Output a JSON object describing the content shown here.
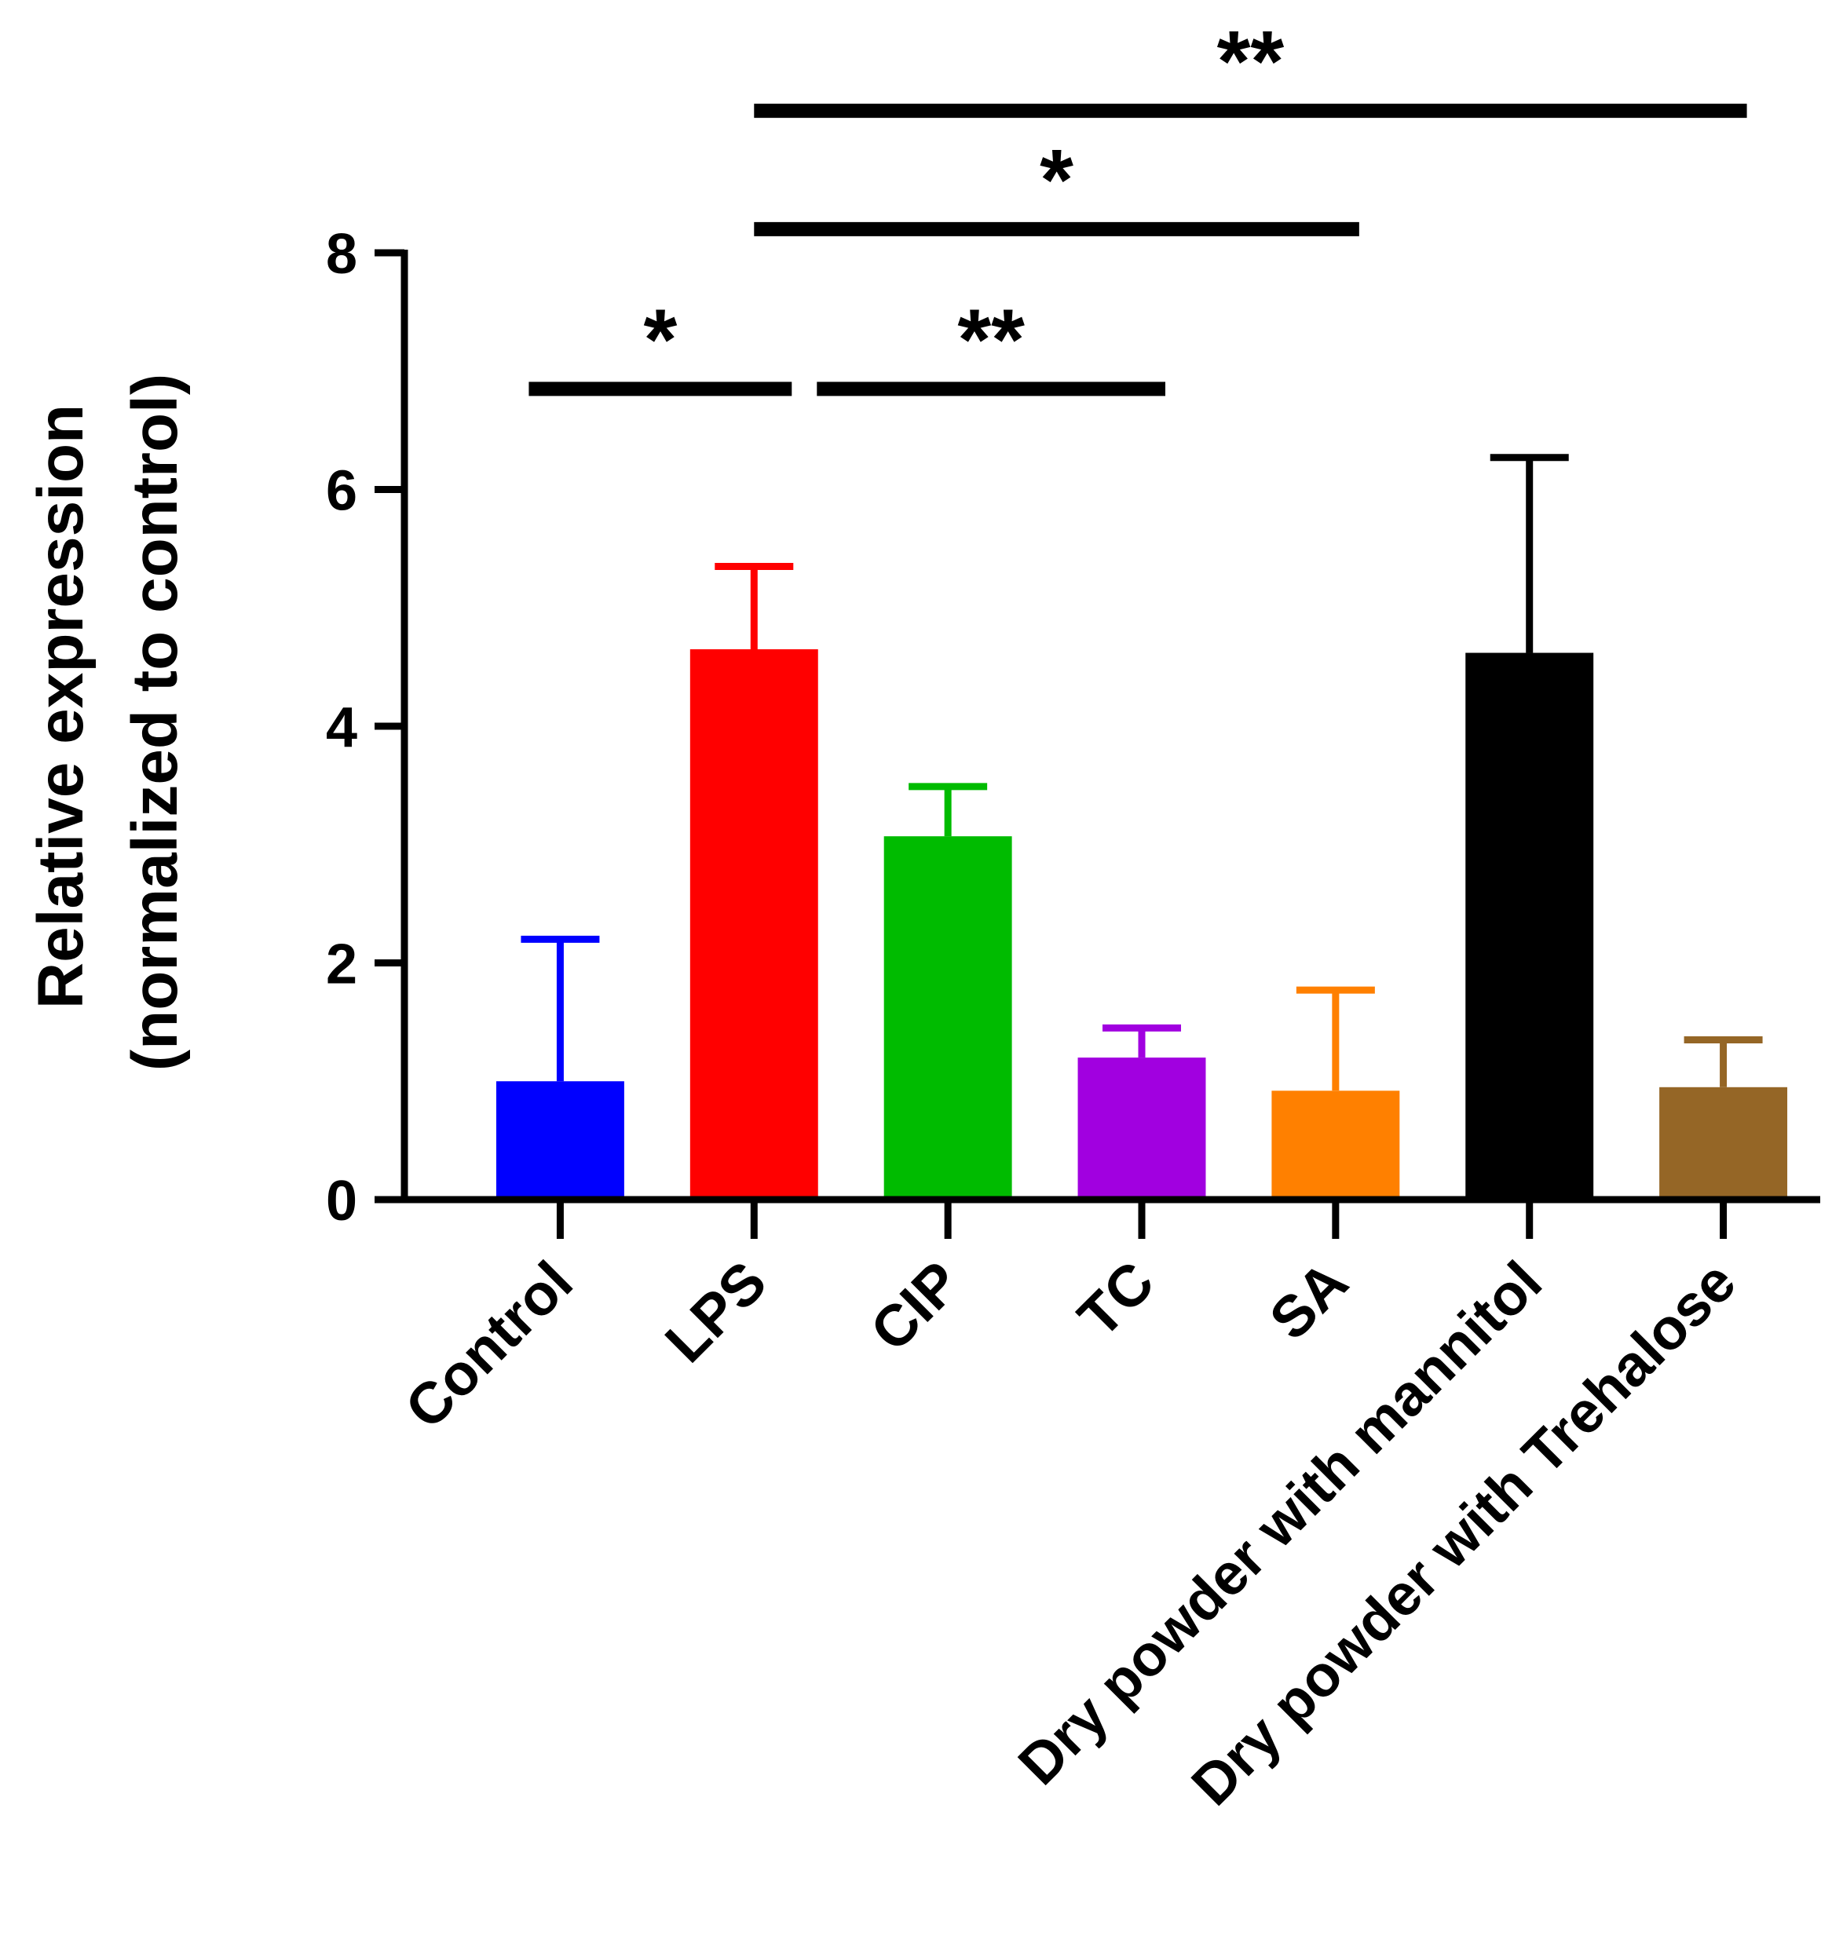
{
  "chart_data": {
    "type": "bar",
    "title": "",
    "xlabel": "",
    "ylabel_lines": [
      "Relative expression",
      "(normalized to control)"
    ],
    "ylim": [
      0,
      8
    ],
    "yticks": [
      0,
      2,
      4,
      6,
      8
    ],
    "grid": false,
    "categories": [
      "Control",
      "LPS",
      "CIP",
      "TC",
      "SA",
      "Dry powder with mannitol",
      "Dry powder with Trehalose"
    ],
    "values": [
      1.0,
      4.65,
      3.07,
      1.2,
      0.92,
      4.62,
      0.95
    ],
    "errors": [
      1.2,
      0.7,
      0.42,
      0.25,
      0.85,
      1.65,
      0.4
    ],
    "colors": [
      "#0000ff",
      "#ff0000",
      "#00bb00",
      "#a100e0",
      "#ff8000",
      "#000000",
      "#956626"
    ],
    "significance": [
      {
        "from": 0,
        "to": 1,
        "label": "*",
        "level": 6.85
      },
      {
        "from": 1,
        "to": 3,
        "label": "**",
        "level": 6.85
      },
      {
        "from": 1,
        "to": 4,
        "label": "*",
        "level": 8.2
      },
      {
        "from": 1,
        "to": 6,
        "label": "**",
        "level": 9.2
      }
    ]
  }
}
